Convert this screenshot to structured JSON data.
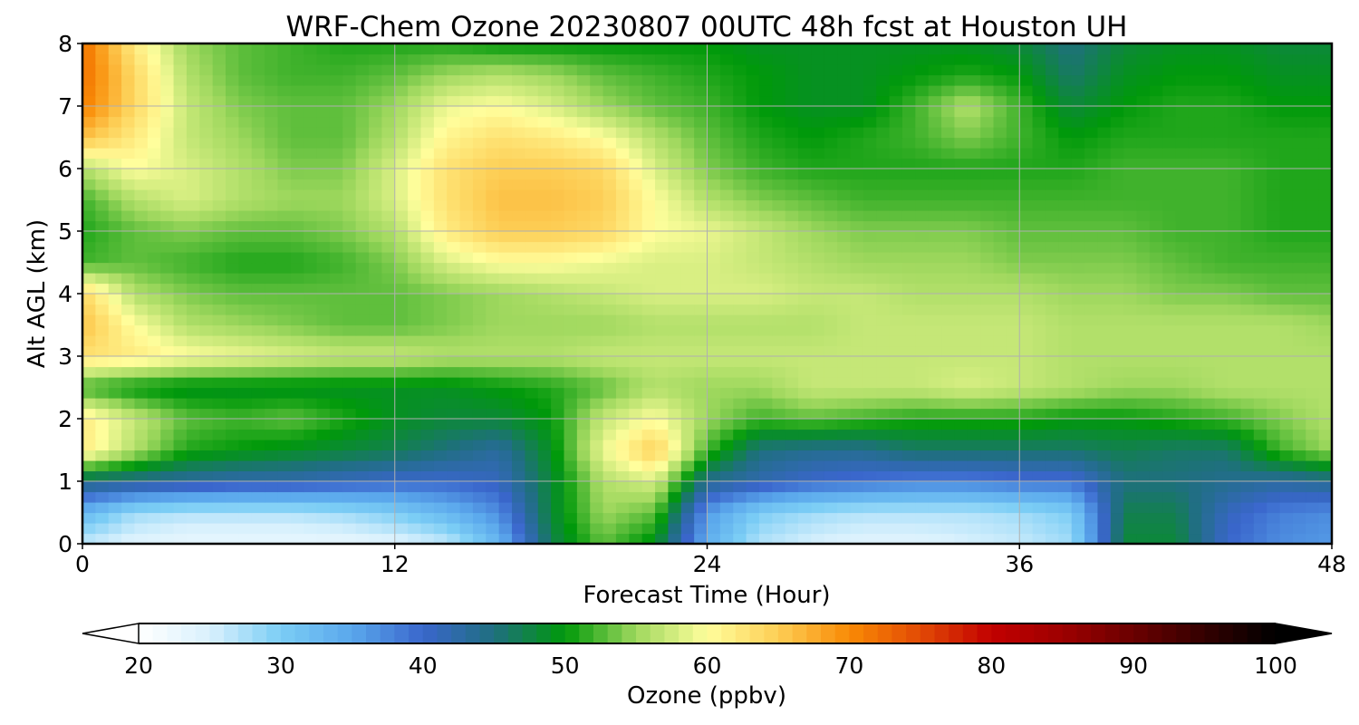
{
  "chart_data": {
    "type": "heatmap",
    "title": "WRF-Chem Ozone  20230807 00UTC 48h fcst at Houston UH",
    "xlabel": "Forecast Time (Hour)",
    "ylabel": "Alt AGL (km)",
    "xlim": [
      0,
      48
    ],
    "ylim": [
      0,
      8
    ],
    "x_ticks": [
      0,
      12,
      24,
      36,
      48
    ],
    "y_ticks": [
      0,
      1,
      2,
      3,
      4,
      5,
      6,
      7,
      8
    ],
    "grid": true,
    "x": [
      0,
      2,
      4,
      6,
      8,
      10,
      12,
      14,
      16,
      18,
      20,
      22,
      24,
      26,
      28,
      30,
      32,
      34,
      36,
      38,
      40,
      42,
      44,
      46,
      48
    ],
    "y": [
      0,
      0.5,
      1,
      1.5,
      2,
      2.5,
      3,
      3.5,
      4,
      4.5,
      5,
      5.5,
      6,
      6.5,
      7,
      7.5,
      8
    ],
    "z": [
      [
        26,
        24,
        23,
        23,
        23,
        23,
        24,
        26,
        33,
        47,
        53,
        49,
        34,
        27,
        25,
        24,
        24,
        25,
        26,
        28,
        48,
        48,
        40,
        37,
        36
      ],
      [
        33,
        28,
        27,
        27,
        27,
        28,
        30,
        33,
        37,
        48,
        55,
        53,
        36,
        30,
        28,
        27,
        27,
        27,
        28,
        30,
        47,
        47,
        41,
        38,
        37
      ],
      [
        45,
        44,
        43,
        42,
        42,
        41,
        40,
        40,
        41,
        48,
        56,
        58,
        44,
        42,
        40,
        39,
        38,
        38,
        39,
        39,
        45,
        45,
        44,
        43,
        44
      ],
      [
        62,
        56,
        51,
        50,
        49,
        48,
        47,
        45,
        43,
        49,
        59,
        65,
        52,
        45,
        44,
        44,
        46,
        46,
        46,
        46,
        47,
        46,
        46,
        52,
        55
      ],
      [
        62,
        57,
        53,
        52,
        53,
        51,
        49,
        48,
        48,
        50,
        57,
        60,
        55,
        52,
        53,
        52,
        51,
        51,
        51,
        50,
        50,
        51,
        52,
        54,
        56
      ],
      [
        52,
        50,
        49,
        49,
        49,
        49,
        49,
        49,
        50,
        51,
        53,
        56,
        55,
        55,
        57,
        57,
        57,
        58,
        57,
        56,
        55,
        55,
        56,
        56,
        56
      ],
      [
        63,
        62,
        60,
        59,
        58,
        57,
        57,
        56,
        56,
        56,
        57,
        57,
        57,
        57,
        57,
        57,
        57,
        57,
        57,
        56,
        56,
        56,
        56,
        56,
        56
      ],
      [
        66,
        60,
        56,
        55,
        54,
        53,
        53,
        54,
        55,
        55,
        55,
        56,
        56,
        56,
        56,
        57,
        57,
        57,
        57,
        56,
        56,
        56,
        56,
        56,
        55
      ],
      [
        64,
        56,
        54,
        53,
        53,
        53,
        53,
        54,
        55,
        56,
        57,
        58,
        58,
        58,
        57,
        57,
        56,
        56,
        56,
        55,
        55,
        54,
        54,
        53,
        53
      ],
      [
        52,
        53,
        52,
        51,
        51,
        52,
        54,
        58,
        60,
        60,
        59,
        58,
        58,
        57,
        56,
        55,
        55,
        55,
        54,
        54,
        54,
        53,
        52,
        52,
        52
      ],
      [
        51,
        53,
        54,
        53,
        53,
        54,
        56,
        62,
        65,
        65,
        64,
        60,
        59,
        57,
        55,
        54,
        54,
        54,
        53,
        53,
        53,
        52,
        52,
        51,
        51
      ],
      [
        52,
        56,
        58,
        56,
        55,
        55,
        58,
        63,
        66,
        66,
        65,
        60,
        56,
        54,
        53,
        52,
        52,
        52,
        52,
        52,
        52,
        52,
        52,
        51,
        51
      ],
      [
        56,
        60,
        58,
        56,
        54,
        54,
        58,
        63,
        65,
        65,
        64,
        58,
        54,
        52,
        51,
        51,
        51,
        51,
        51,
        51,
        52,
        52,
        52,
        51,
        51
      ],
      [
        66,
        62,
        57,
        55,
        53,
        53,
        56,
        61,
        63,
        62,
        60,
        56,
        53,
        51,
        50,
        51,
        52,
        54,
        52,
        50,
        51,
        51,
        51,
        51,
        51
      ],
      [
        71,
        64,
        57,
        54,
        53,
        53,
        55,
        59,
        60,
        58,
        55,
        53,
        52,
        50,
        49,
        49,
        52,
        56,
        52,
        48,
        50,
        51,
        51,
        50,
        50
      ],
      [
        72,
        64,
        56,
        53,
        52,
        52,
        53,
        55,
        56,
        55,
        53,
        52,
        51,
        50,
        49,
        49,
        50,
        51,
        50,
        46,
        49,
        50,
        50,
        49,
        49
      ],
      [
        72,
        62,
        55,
        53,
        52,
        51,
        51,
        51,
        50,
        50,
        50,
        50,
        50,
        49,
        49,
        49,
        49,
        49,
        48,
        45,
        48,
        49,
        49,
        48,
        48
      ]
    ],
    "colorbar": {
      "label": "Ozone  (ppbv)",
      "min": 20,
      "max": 100,
      "ticks": [
        20,
        30,
        40,
        50,
        60,
        70,
        80,
        90,
        100
      ],
      "extend": "both",
      "stops": [
        {
          "v": 20,
          "c": "#ffffff"
        },
        {
          "v": 25,
          "c": "#d9f1fd"
        },
        {
          "v": 30,
          "c": "#7bcdf5"
        },
        {
          "v": 35,
          "c": "#5aa7ec"
        },
        {
          "v": 40,
          "c": "#3a66cc"
        },
        {
          "v": 45,
          "c": "#1f6f7f"
        },
        {
          "v": 50,
          "c": "#00990a"
        },
        {
          "v": 55,
          "c": "#9fd85e"
        },
        {
          "v": 60,
          "c": "#fffe9c"
        },
        {
          "v": 65,
          "c": "#fdce55"
        },
        {
          "v": 70,
          "c": "#f98a05"
        },
        {
          "v": 75,
          "c": "#e24a05"
        },
        {
          "v": 80,
          "c": "#c20000"
        },
        {
          "v": 85,
          "c": "#9d0000"
        },
        {
          "v": 90,
          "c": "#6a0000"
        },
        {
          "v": 95,
          "c": "#330000"
        },
        {
          "v": 100,
          "c": "#000000"
        }
      ]
    }
  }
}
